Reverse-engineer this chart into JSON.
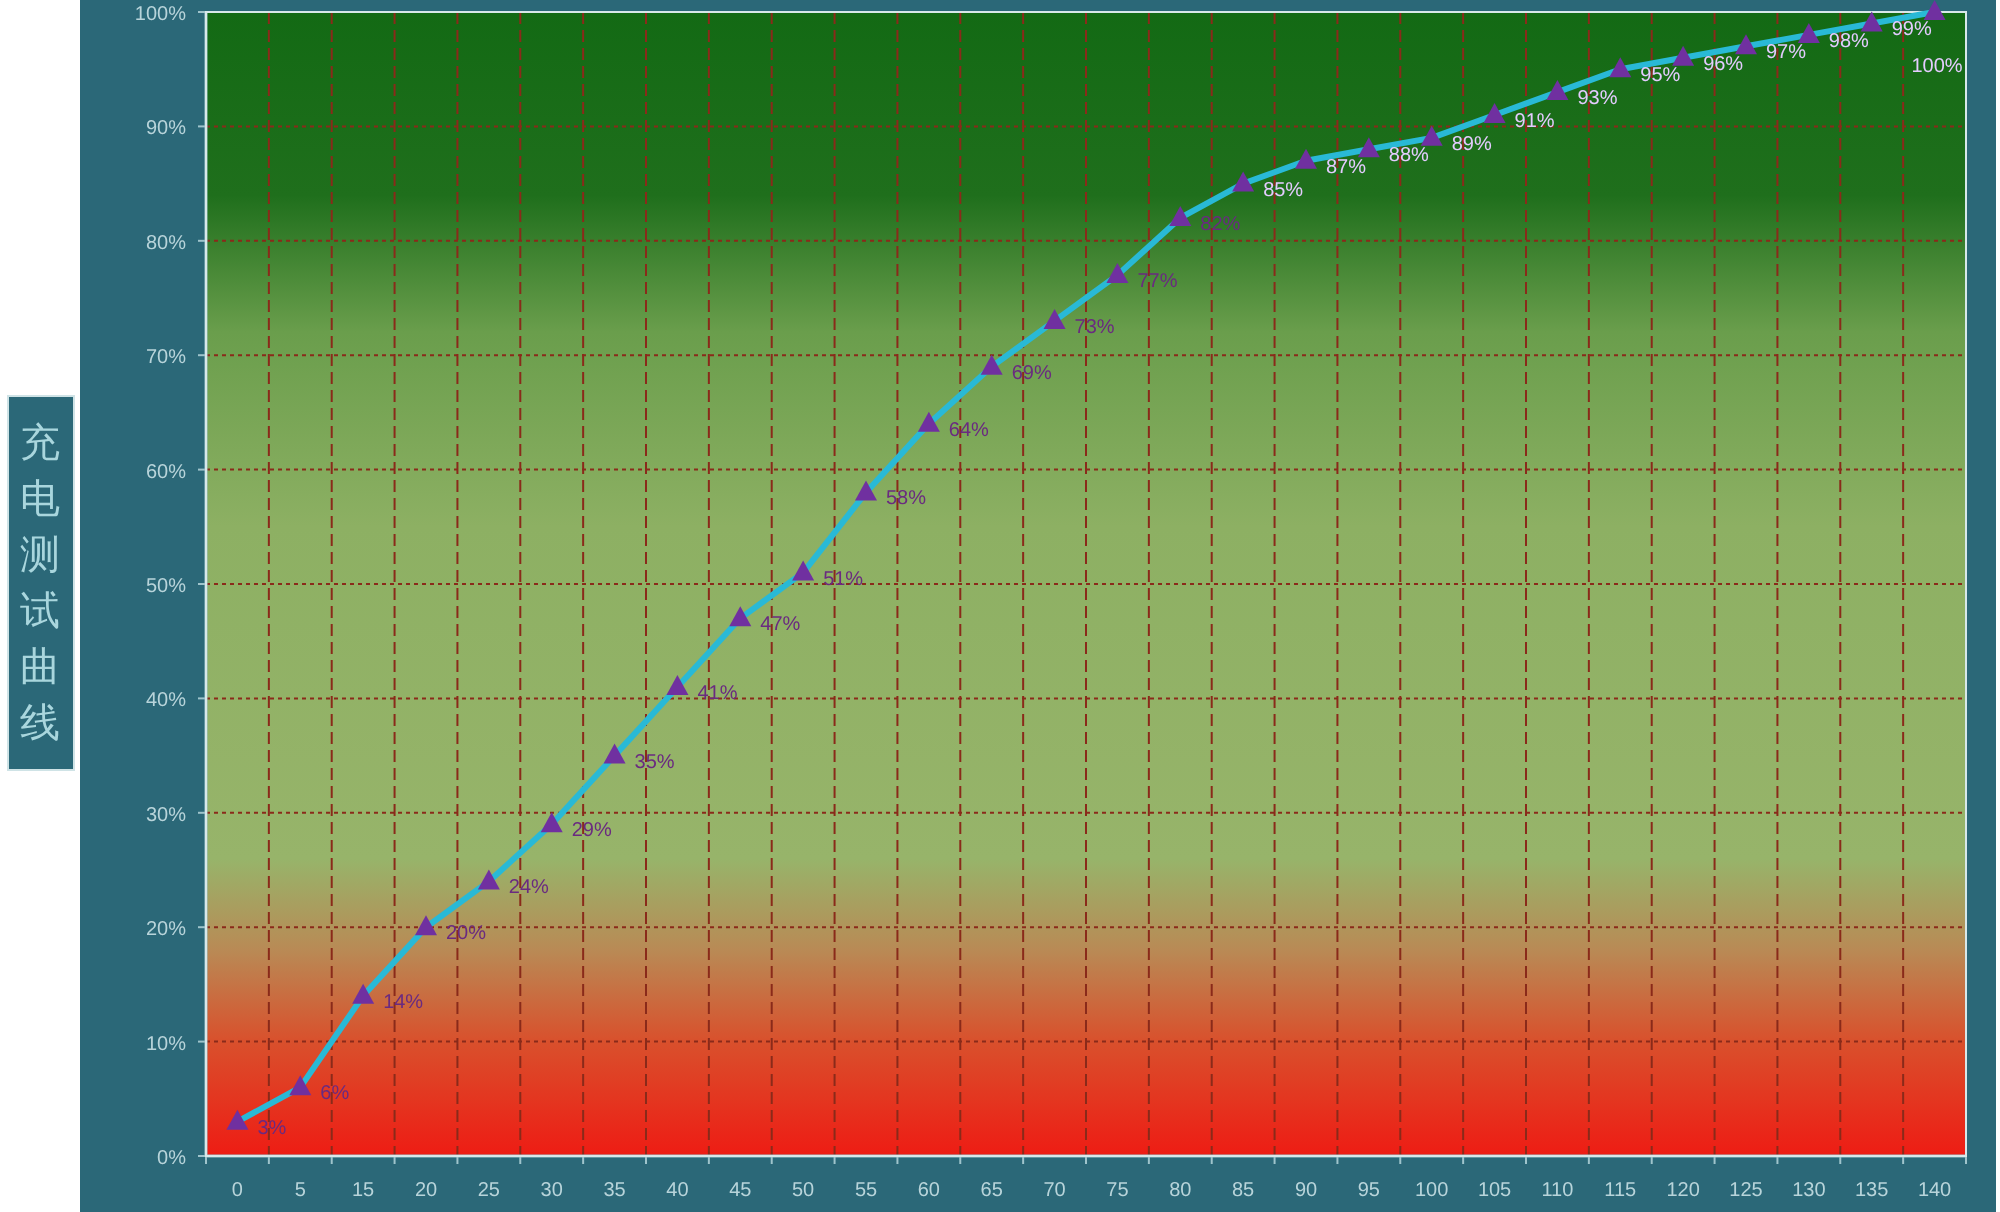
{
  "chart_data": {
    "type": "line",
    "ylabel": "充电测试曲线",
    "categories": [
      "0",
      "5",
      "15",
      "20",
      "25",
      "30",
      "35",
      "40",
      "45",
      "50",
      "55",
      "60",
      "65",
      "70",
      "75",
      "80",
      "85",
      "90",
      "95",
      "100",
      "105",
      "110",
      "115",
      "120",
      "125",
      "130",
      "135",
      "140"
    ],
    "series": [
      {
        "color": "#29b9d6",
        "values": [
          3,
          6,
          14,
          20,
          24,
          29,
          35,
          41,
          47,
          51,
          58,
          64,
          69,
          73,
          77,
          82,
          85,
          87,
          88,
          89,
          91,
          93,
          95,
          96,
          97,
          98,
          99,
          100
        ]
      }
    ],
    "ylim": [
      0,
      100
    ],
    "yticks": [
      {
        "value": 0,
        "label": "0%"
      },
      {
        "value": 10,
        "label": "10%"
      },
      {
        "value": 20,
        "label": "20%"
      },
      {
        "value": 30,
        "label": "30%"
      },
      {
        "value": 40,
        "label": "40%"
      },
      {
        "value": 50,
        "label": "50%"
      },
      {
        "value": 60,
        "label": "60%"
      },
      {
        "value": 70,
        "label": "70%"
      },
      {
        "value": 80,
        "label": "80%"
      },
      {
        "value": 90,
        "label": "90%"
      },
      {
        "value": 100,
        "label": "100%"
      }
    ],
    "value_labels": [
      "3%",
      "6%",
      "14%",
      "20%",
      "24%",
      "29%",
      "35%",
      "41%",
      "47%",
      "51%",
      "58%",
      "64%",
      "69%",
      "73%",
      "77%",
      "82%",
      "85%",
      "87%",
      "88%",
      "89%",
      "91%",
      "93%",
      "95%",
      "96%",
      "97%",
      "98%",
      "99%",
      "100%"
    ],
    "grid": true,
    "marker": "triangle",
    "line_style": "solid"
  }
}
